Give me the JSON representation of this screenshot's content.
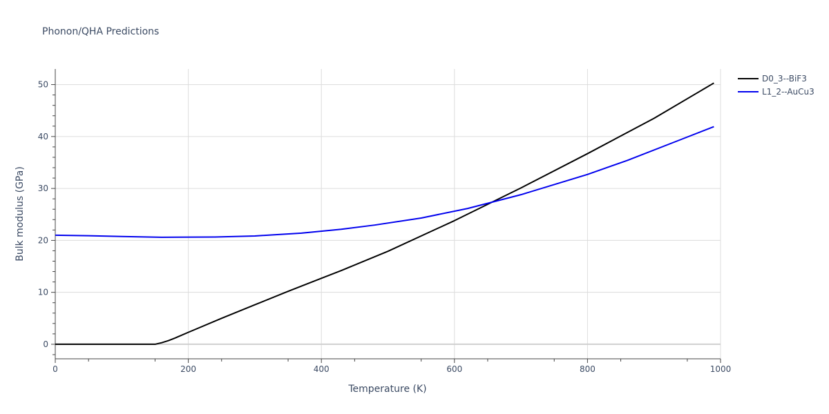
{
  "chart_data": {
    "type": "line",
    "title": "Phonon/QHA Predictions",
    "xlabel": "Temperature (K)",
    "ylabel": "Bulk modulus (GPa)",
    "xlim": [
      0,
      1000
    ],
    "ylim": [
      -2.8,
      53
    ],
    "xticks": [
      0,
      200,
      400,
      600,
      800,
      1000
    ],
    "yticks": [
      0,
      10,
      20,
      30,
      40,
      50
    ],
    "grid": true,
    "legend_position": "top-right",
    "series": [
      {
        "name": "D0_3--BiF3",
        "color": "#000000",
        "x": [
          0,
          100,
          150,
          160,
          170,
          180,
          200,
          250,
          300,
          350,
          400,
          430,
          500,
          600,
          700,
          800,
          900,
          990
        ],
        "y": [
          0,
          0,
          0,
          0.3,
          0.7,
          1.2,
          2.3,
          5.0,
          7.6,
          10.2,
          12.7,
          14.2,
          17.9,
          23.8,
          30.1,
          36.7,
          43.5,
          50.3
        ]
      },
      {
        "name": "L1_2--AuCu3",
        "color": "#0000ee",
        "x": [
          0,
          50,
          100,
          160,
          240,
          300,
          370,
          430,
          480,
          550,
          620,
          700,
          800,
          860,
          940,
          990
        ],
        "y": [
          21.0,
          20.9,
          20.75,
          20.6,
          20.65,
          20.85,
          21.4,
          22.15,
          22.95,
          24.3,
          26.15,
          28.8,
          32.7,
          35.4,
          39.4,
          41.9
        ]
      }
    ]
  }
}
